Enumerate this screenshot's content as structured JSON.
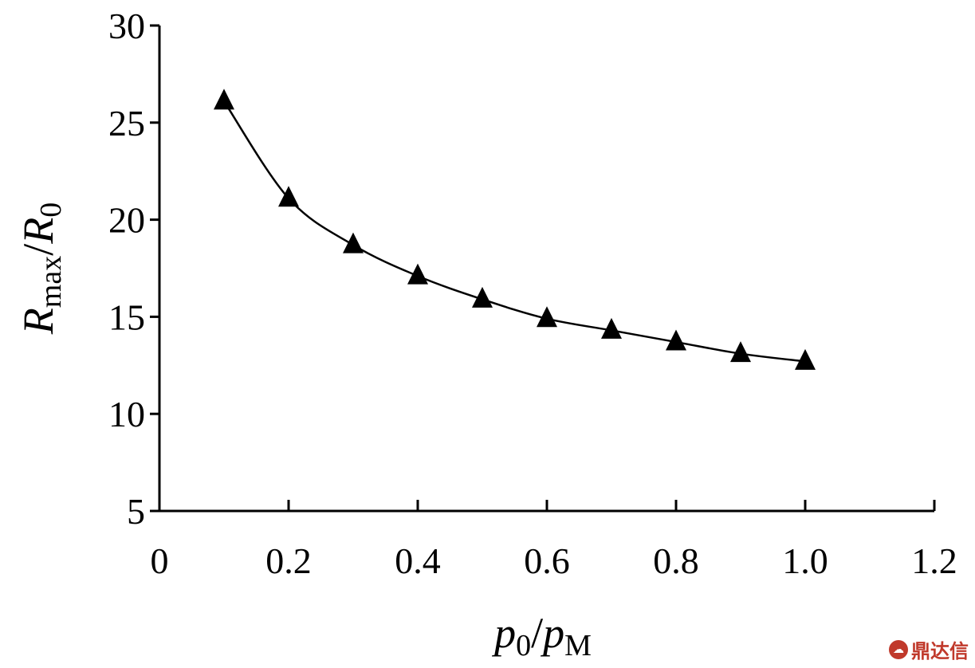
{
  "chart_data": {
    "type": "line",
    "title": "",
    "xlabel": {
      "main": "p",
      "sub1": "0",
      "slash": "/",
      "main2": "p",
      "sub2": "M"
    },
    "ylabel": {
      "main": "R",
      "sub1": "max",
      "slash": "/",
      "main2": "R",
      "sub2": "0"
    },
    "xlim": [
      0,
      1.2
    ],
    "ylim": [
      5,
      30
    ],
    "xticks": [
      "0",
      "0.2",
      "0.4",
      "0.6",
      "0.8",
      "1.0",
      "1.2"
    ],
    "yticks": [
      "5",
      "10",
      "15",
      "20",
      "25",
      "30"
    ],
    "grid": false,
    "series": [
      {
        "marker": "triangle",
        "color": "#000000",
        "x": [
          0.1,
          0.2,
          0.3,
          0.4,
          0.5,
          0.6,
          0.7,
          0.8,
          0.9,
          1.0
        ],
        "y": [
          26.1,
          21.1,
          18.7,
          17.1,
          15.9,
          14.9,
          14.3,
          13.7,
          13.1,
          12.7
        ]
      }
    ]
  },
  "watermark": {
    "text": "鼎达信",
    "logo": "cloud-logo-icon"
  }
}
